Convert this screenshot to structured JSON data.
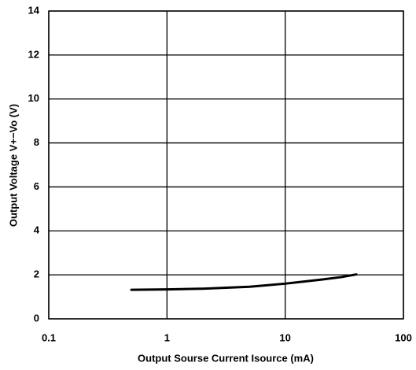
{
  "chart_data": {
    "type": "line",
    "xlabel": "Output Sourse Current  Isource (mA)",
    "ylabel": "Output Voltage  V+−Vo (V)",
    "x": [
      0.5,
      1,
      2,
      5,
      10,
      20,
      30,
      40
    ],
    "values": [
      1.32,
      1.34,
      1.37,
      1.46,
      1.6,
      1.78,
      1.9,
      2.02
    ],
    "color": "#000000",
    "xscale": "log",
    "xlim": [
      0.1,
      100
    ],
    "xticks": [
      0.1,
      1,
      10,
      100
    ],
    "ylim": [
      0,
      14
    ],
    "yticks": [
      0,
      2,
      4,
      6,
      8,
      10,
      12,
      14
    ],
    "grid": true
  }
}
